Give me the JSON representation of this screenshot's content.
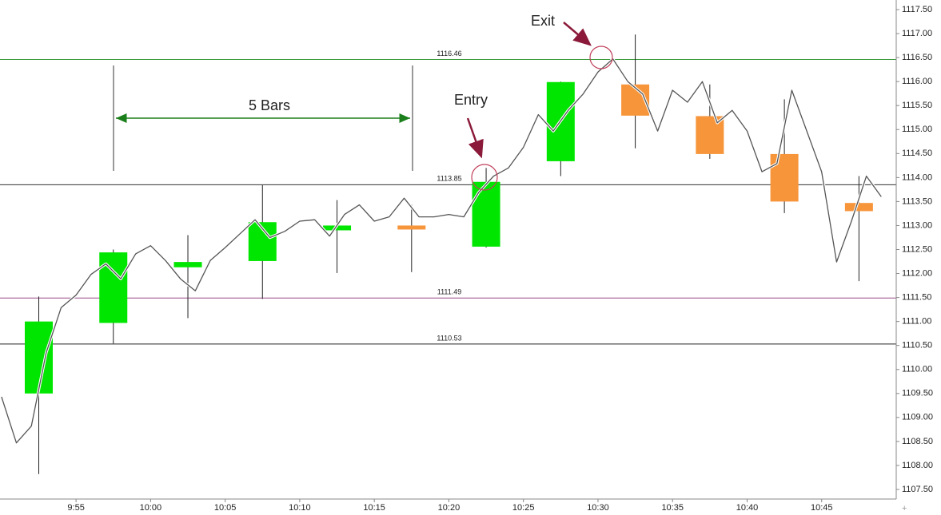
{
  "chart_data": {
    "type": "candlestick",
    "xlim": [
      589.9,
      650
    ],
    "xticks": [
      {
        "value": 595,
        "label": "9:55"
      },
      {
        "value": 600,
        "label": "10:00"
      },
      {
        "value": 605,
        "label": "10:05"
      },
      {
        "value": 610,
        "label": "10:10"
      },
      {
        "value": 615,
        "label": "10:15"
      },
      {
        "value": 620,
        "label": "10:20"
      },
      {
        "value": 625,
        "label": "10:25"
      },
      {
        "value": 630,
        "label": "10:30"
      },
      {
        "value": 635,
        "label": "10:35"
      },
      {
        "value": 640,
        "label": "10:40"
      },
      {
        "value": 645,
        "label": "10:45"
      }
    ],
    "ylim": [
      1107.3,
      1117.7
    ],
    "yticks": [
      {
        "value": 1107.5,
        "label": "1107.50"
      },
      {
        "value": 1108,
        "label": "1108.00"
      },
      {
        "value": 1108.5,
        "label": "1108.50"
      },
      {
        "value": 1109,
        "label": "1109.00"
      },
      {
        "value": 1109.5,
        "label": "1109.50"
      },
      {
        "value": 1110,
        "label": "1110.00"
      },
      {
        "value": 1110.5,
        "label": "1110.50"
      },
      {
        "value": 1111,
        "label": "1111.00"
      },
      {
        "value": 1111.5,
        "label": "1111.50"
      },
      {
        "value": 1112,
        "label": "1112.00"
      },
      {
        "value": 1112.5,
        "label": "1112.50"
      },
      {
        "value": 1113,
        "label": "1113.00"
      },
      {
        "value": 1113.5,
        "label": "1113.50"
      },
      {
        "value": 1114,
        "label": "1114.00"
      },
      {
        "value": 1114.5,
        "label": "1114.50"
      },
      {
        "value": 1115,
        "label": "1115.00"
      },
      {
        "value": 1115.5,
        "label": "1115.50"
      },
      {
        "value": 1116,
        "label": "1116.00"
      },
      {
        "value": 1116.5,
        "label": "1116.50"
      },
      {
        "value": 1117,
        "label": "1117.00"
      },
      {
        "value": 1117.5,
        "label": "1117.50"
      }
    ],
    "up_color": "#00e600",
    "down_color": "#f7953a",
    "candles": {
      "x": [
        592.5,
        597.5,
        602.5,
        607.5,
        612.5,
        617.5,
        622.5,
        627.5,
        632.5,
        637.5,
        642.5,
        647.5
      ],
      "open": [
        1109.5,
        1110.97,
        1112.13,
        1112.26,
        1112.9,
        1113.0,
        1112.56,
        1114.34,
        1115.94,
        1115.28,
        1114.49,
        1113.47
      ],
      "high": [
        1111.52,
        1112.5,
        1112.8,
        1113.84,
        1113.53,
        1113.43,
        1114.2,
        1116.0,
        1116.98,
        1115.94,
        1115.63,
        1114.03
      ],
      "low": [
        1107.82,
        1110.54,
        1111.07,
        1111.47,
        1112.01,
        1112.03,
        1112.54,
        1114.03,
        1114.61,
        1114.39,
        1113.26,
        1111.84
      ],
      "close": [
        1111.0,
        1112.44,
        1112.24,
        1113.07,
        1113.0,
        1112.97,
        1113.91,
        1115.99,
        1115.29,
        1114.49,
        1113.5,
        1113.3
      ]
    },
    "line": {
      "color": "#555555",
      "x": [
        590,
        591,
        592,
        593,
        594,
        595,
        596,
        597,
        598,
        599,
        600,
        601,
        602,
        603,
        604,
        605,
        606,
        607,
        608,
        609,
        610,
        611,
        612,
        613,
        614,
        615,
        616,
        617,
        618,
        619,
        620,
        621,
        622,
        623,
        624,
        625,
        626,
        627,
        628,
        629,
        630,
        631,
        632,
        633,
        634,
        635,
        636,
        637,
        638,
        639,
        640,
        641,
        642,
        643,
        644,
        645,
        646,
        647,
        648,
        649
      ],
      "values": [
        1109.43,
        1108.47,
        1108.82,
        1110.35,
        1111.29,
        1111.55,
        1111.98,
        1112.2,
        1111.89,
        1112.41,
        1112.58,
        1112.27,
        1111.89,
        1111.64,
        1112.27,
        1112.54,
        1112.83,
        1113.12,
        1112.75,
        1112.88,
        1113.09,
        1113.12,
        1112.78,
        1113.23,
        1113.43,
        1113.09,
        1113.18,
        1113.57,
        1113.18,
        1113.18,
        1113.23,
        1113.18,
        1113.69,
        1114.03,
        1114.2,
        1114.63,
        1115.31,
        1114.97,
        1115.4,
        1115.74,
        1116.2,
        1116.47,
        1116.0,
        1115.74,
        1114.97,
        1115.82,
        1115.57,
        1116.0,
        1115.14,
        1115.4,
        1114.97,
        1114.12,
        1114.29,
        1115.82,
        1114.97,
        1114.12,
        1112.24,
        1113.09,
        1114.03,
        1113.6
      ]
    },
    "hlines": [
      {
        "value": 1116.46,
        "color": "#3a9a3a"
      },
      {
        "value": 1113.85,
        "color": "#333333"
      },
      {
        "value": 1111.49,
        "color": "#9a4a8a"
      },
      {
        "value": 1110.53,
        "color": "#222222"
      }
    ],
    "annotations": {
      "bars": "5 Bars",
      "entry": "Entry",
      "exit": "Exit"
    }
  }
}
